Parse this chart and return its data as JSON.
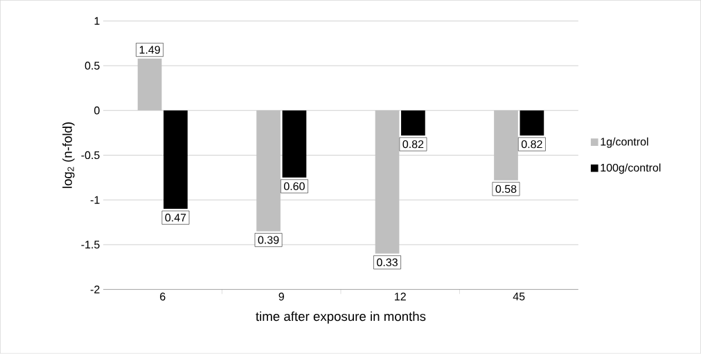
{
  "chart_data": {
    "type": "bar",
    "xlabel": "time after exposure in months",
    "ylabel": "log$_{2}$ (n-fold)",
    "categories": [
      "6",
      "9",
      "12",
      "45"
    ],
    "series": [
      {
        "name": "1g/control",
        "color": "#bfbfbf",
        "values": [
          0.58,
          -1.35,
          -1.6,
          -0.78
        ]
      },
      {
        "name": "100g/control",
        "color": "#000000",
        "values": [
          -1.1,
          -0.75,
          -0.28,
          -0.28
        ]
      }
    ],
    "annotations": [
      {
        "text": "1.49",
        "x": "6",
        "y": 0.58
      },
      {
        "text": "0.39",
        "x": "9",
        "y": -1.35
      },
      {
        "text": "0.33",
        "x": "12",
        "y": -1.6
      },
      {
        "text": "0.58",
        "x": "45",
        "y": -0.78
      },
      {
        "text": "0.47",
        "x": "6",
        "y": -1.1
      },
      {
        "text": "0.60",
        "x": "9",
        "y": -0.75
      },
      {
        "text": "0.82",
        "x": "12",
        "y": -0.28
      },
      {
        "text": "0.82",
        "x": "45",
        "y": -0.28
      }
    ],
    "ylim": [
      -2,
      1
    ],
    "yticks": [
      -2,
      -1.5,
      -1,
      -0.5,
      0,
      0.5,
      1
    ],
    "grid": "y",
    "legend": "right"
  }
}
